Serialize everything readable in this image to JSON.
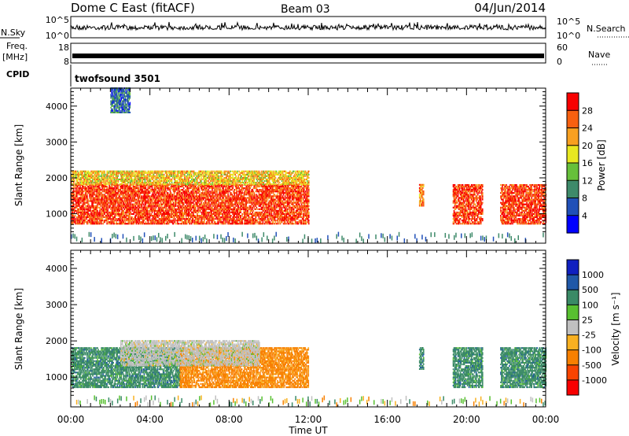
{
  "header": {
    "title": "Dome C East (fitACF)",
    "beam": "Beam 03",
    "date": "04/Jun/2014"
  },
  "panels": {
    "noise": {
      "left_label": "N.Sky",
      "right_label": "N.Search",
      "left_ticks": [
        "10^5",
        "10^0"
      ],
      "right_ticks": [
        "10^5",
        "10^0"
      ]
    },
    "freq": {
      "left_label_1": "Freq.",
      "left_label_2": "[MHz]",
      "right_label": "Nave",
      "left_ticks": [
        "18",
        "8"
      ],
      "right_ticks": [
        "60",
        "0"
      ]
    },
    "cpid": {
      "left_label": "CPID",
      "text": "twofsound 3501"
    }
  },
  "colors": {
    "noise_trace": "#000000",
    "freq_trace": "#000000"
  },
  "chart_data": [
    {
      "type": "heatmap",
      "title": "",
      "xlabel": "",
      "ylabel": "Slant Range [km]",
      "x_range": [
        "00:00",
        "24:00"
      ],
      "ylim": [
        180,
        4500
      ],
      "y_ticks": [
        "1000",
        "2000",
        "3000",
        "4000"
      ],
      "colorbar": {
        "label": "Power [dB]",
        "levels": [
          0,
          4,
          8,
          12,
          16,
          20,
          24,
          28,
          32
        ],
        "tick_labels": [
          "4",
          "8",
          "12",
          "16",
          "20",
          "24",
          "28"
        ],
        "colors": [
          "#0000ff",
          "#2050b8",
          "#3e8a6a",
          "#66c03a",
          "#e8e820",
          "#f8a020",
          "#f86010",
          "#f80000"
        ]
      },
      "regions": [
        {
          "t0": 0.0,
          "t1": 12.0,
          "r0": 700,
          "r1": 1800,
          "level": 28
        },
        {
          "t0": 0.0,
          "t1": 12.0,
          "r0": 1800,
          "r1": 2200,
          "level": 20
        },
        {
          "t0": 17.6,
          "t1": 17.8,
          "r0": 1200,
          "r1": 1800,
          "level": 24
        },
        {
          "t0": 19.3,
          "t1": 20.8,
          "r0": 700,
          "r1": 1800,
          "level": 28
        },
        {
          "t0": 21.7,
          "t1": 24.0,
          "r0": 700,
          "r1": 1800,
          "level": 28
        },
        {
          "t0": 2.0,
          "t1": 3.0,
          "r0": 3800,
          "r1": 4500,
          "level": 8
        }
      ]
    },
    {
      "type": "heatmap",
      "title": "",
      "xlabel": "Time UT",
      "ylabel": "Slant Range [km]",
      "x_range": [
        "00:00",
        "24:00"
      ],
      "x_ticks": [
        "00:00",
        "04:00",
        "08:00",
        "12:00",
        "16:00",
        "20:00",
        "00:00"
      ],
      "ylim": [
        180,
        4500
      ],
      "y_ticks": [
        "1000",
        "2000",
        "3000",
        "4000"
      ],
      "colorbar": {
        "label": "Velocity [m s⁻¹]",
        "levels": [
          -2000,
          -1000,
          -500,
          -100,
          -25,
          25,
          100,
          500,
          1000,
          2000
        ],
        "tick_labels": [
          "-1000",
          "-500",
          "-100",
          "-25",
          "25",
          "100",
          "500",
          "1000"
        ],
        "colors": [
          "#f80000",
          "#f84400",
          "#f88000",
          "#f8b020",
          "#c0c0c0",
          "#58c030",
          "#3a8a66",
          "#2058a8",
          "#1020c0"
        ]
      },
      "regions": [
        {
          "t0": 0.0,
          "t1": 5.5,
          "r0": 700,
          "r1": 1800,
          "value": 300
        },
        {
          "t0": 5.5,
          "t1": 12.0,
          "r0": 700,
          "r1": 1800,
          "value": -200
        },
        {
          "t0": 2.5,
          "t1": 9.5,
          "r0": 1300,
          "r1": 2000,
          "value": 0
        },
        {
          "t0": 17.6,
          "t1": 17.8,
          "r0": 1200,
          "r1": 1800,
          "value": 300
        },
        {
          "t0": 19.3,
          "t1": 20.8,
          "r0": 700,
          "r1": 1800,
          "value": 300
        },
        {
          "t0": 21.7,
          "t1": 24.0,
          "r0": 700,
          "r1": 1800,
          "value": 300
        }
      ]
    }
  ]
}
